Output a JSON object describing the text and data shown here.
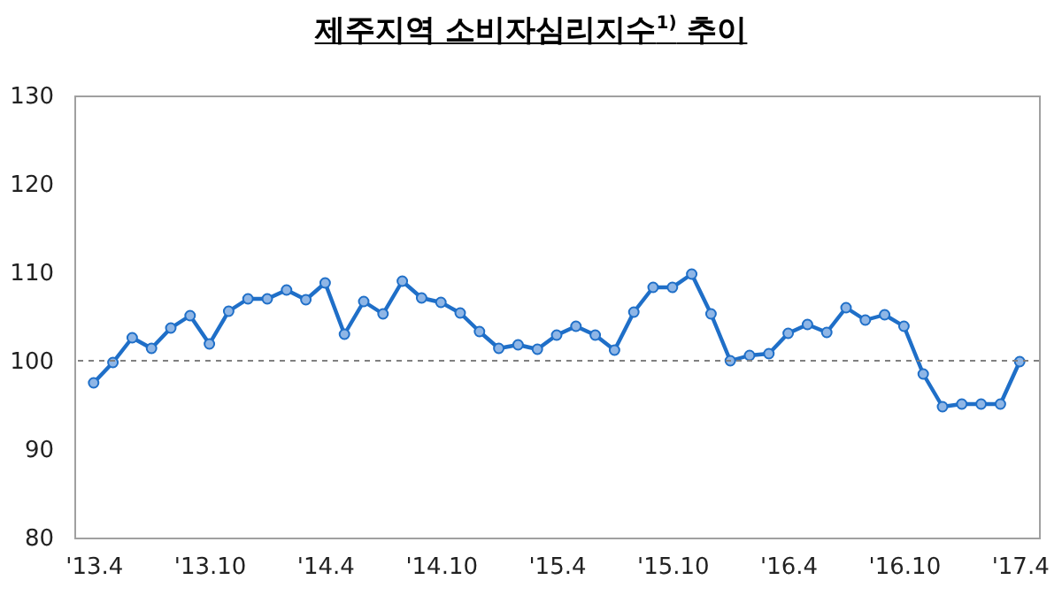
{
  "chart_data": {
    "type": "line",
    "title": "제주지역 소비자심리지수$^{1)}$ 추이",
    "categories": [
      "'13.4",
      null,
      null,
      null,
      null,
      null,
      "'13.10",
      null,
      null,
      null,
      null,
      null,
      "'14.4",
      null,
      null,
      null,
      null,
      null,
      "'14.10",
      null,
      null,
      null,
      null,
      null,
      "'15.4",
      null,
      null,
      null,
      null,
      null,
      "'15.10",
      null,
      null,
      null,
      null,
      null,
      "'16.4",
      null,
      null,
      null,
      null,
      null,
      "'16.10",
      null,
      null,
      null,
      null,
      null,
      "'17.4"
    ],
    "series": [
      {
        "color": "#1f6fc8",
        "values": [
          97.5,
          99.8,
          102.6,
          101.4,
          103.7,
          105.1,
          101.9,
          105.6,
          107,
          107,
          108,
          106.9,
          108.8,
          103,
          106.7,
          105.3,
          109,
          107.1,
          106.6,
          105.4,
          103.3,
          101.4,
          101.8,
          101.3,
          102.9,
          103.9,
          102.9,
          101.2,
          105.5,
          108.3,
          108.3,
          109.8,
          105.3,
          100,
          100.6,
          100.8,
          103.1,
          104.1,
          103.2,
          106,
          104.6,
          105.2,
          103.9,
          98.5,
          94.8,
          95.1,
          95.1,
          95.1,
          99.9
        ]
      }
    ],
    "ylim": [
      80,
      130
    ],
    "yticks": [
      80,
      90,
      100,
      110,
      120,
      130
    ],
    "grid": false,
    "marker": "circle",
    "line_style": "solid",
    "ref_lines": [
      {
        "axis": "y",
        "value": 100,
        "color": "#808080",
        "line_style": "dashed"
      }
    ]
  }
}
